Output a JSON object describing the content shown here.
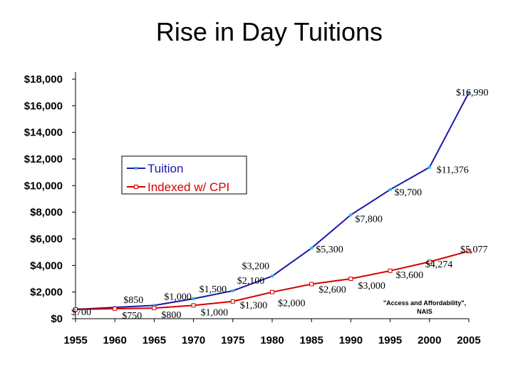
{
  "chart_data": {
    "type": "line",
    "title": "Rise in Day Tuitions",
    "xlabel": "",
    "ylabel": "",
    "x_ticks": [
      "1955",
      "1960",
      "1965",
      "1970",
      "1975",
      "1980",
      "1985",
      "1990",
      "1995",
      "2000",
      "2005"
    ],
    "y_ticks": [
      "$0",
      "$2,000",
      "$4,000",
      "$6,000",
      "$8,000",
      "$10,000",
      "$12,000",
      "$14,000",
      "$16,000",
      "$18,000"
    ],
    "xlim": [
      1955,
      2005
    ],
    "ylim": [
      0,
      18000
    ],
    "grid": false,
    "legend_position": "upper-left-center",
    "series": [
      {
        "name": "Tuition",
        "color": "#1a1aa8",
        "marker_color": "#29b6e6",
        "x": [
          1955,
          1960,
          1965,
          1970,
          1975,
          1980,
          1985,
          1990,
          1995,
          2000,
          2005
        ],
        "values": [
          700,
          850,
          1000,
          1500,
          2100,
          3200,
          5300,
          7800,
          9700,
          11376,
          16990
        ],
        "labels": [
          "$700",
          "$850",
          "$1,000",
          "$1,500",
          "$2,100",
          "$3,200",
          "$5,300",
          "$7,800",
          "$9,700",
          "$11,376",
          "$16,990"
        ]
      },
      {
        "name": "Indexed w/ CPI",
        "color": "#d40000",
        "marker_color": "#f5c400",
        "x": [
          1955,
          1960,
          1965,
          1970,
          1975,
          1980,
          1985,
          1990,
          1995,
          2000,
          2005
        ],
        "values": [
          700,
          750,
          800,
          1000,
          1300,
          2000,
          2600,
          3000,
          3600,
          4274,
          5077
        ],
        "labels": [
          "",
          "$750",
          "$800",
          "$1,000",
          "$1,300",
          "$2,000",
          "$2,600",
          "$3,000",
          "$3,600",
          "$4,274",
          "$5,077"
        ]
      }
    ],
    "annotation": [
      "\"Access and Affordability\",",
      "NAIS"
    ]
  }
}
